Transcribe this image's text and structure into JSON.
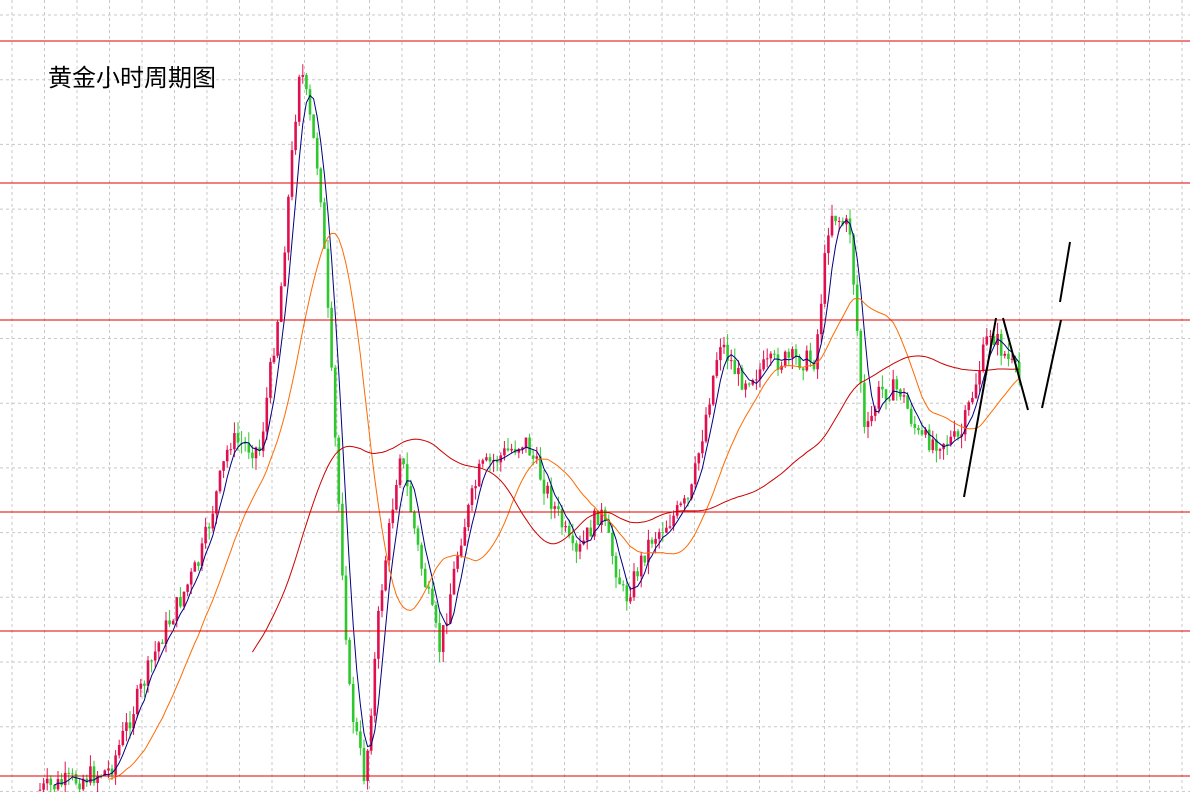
{
  "title": "黄金小时周期图"
}
